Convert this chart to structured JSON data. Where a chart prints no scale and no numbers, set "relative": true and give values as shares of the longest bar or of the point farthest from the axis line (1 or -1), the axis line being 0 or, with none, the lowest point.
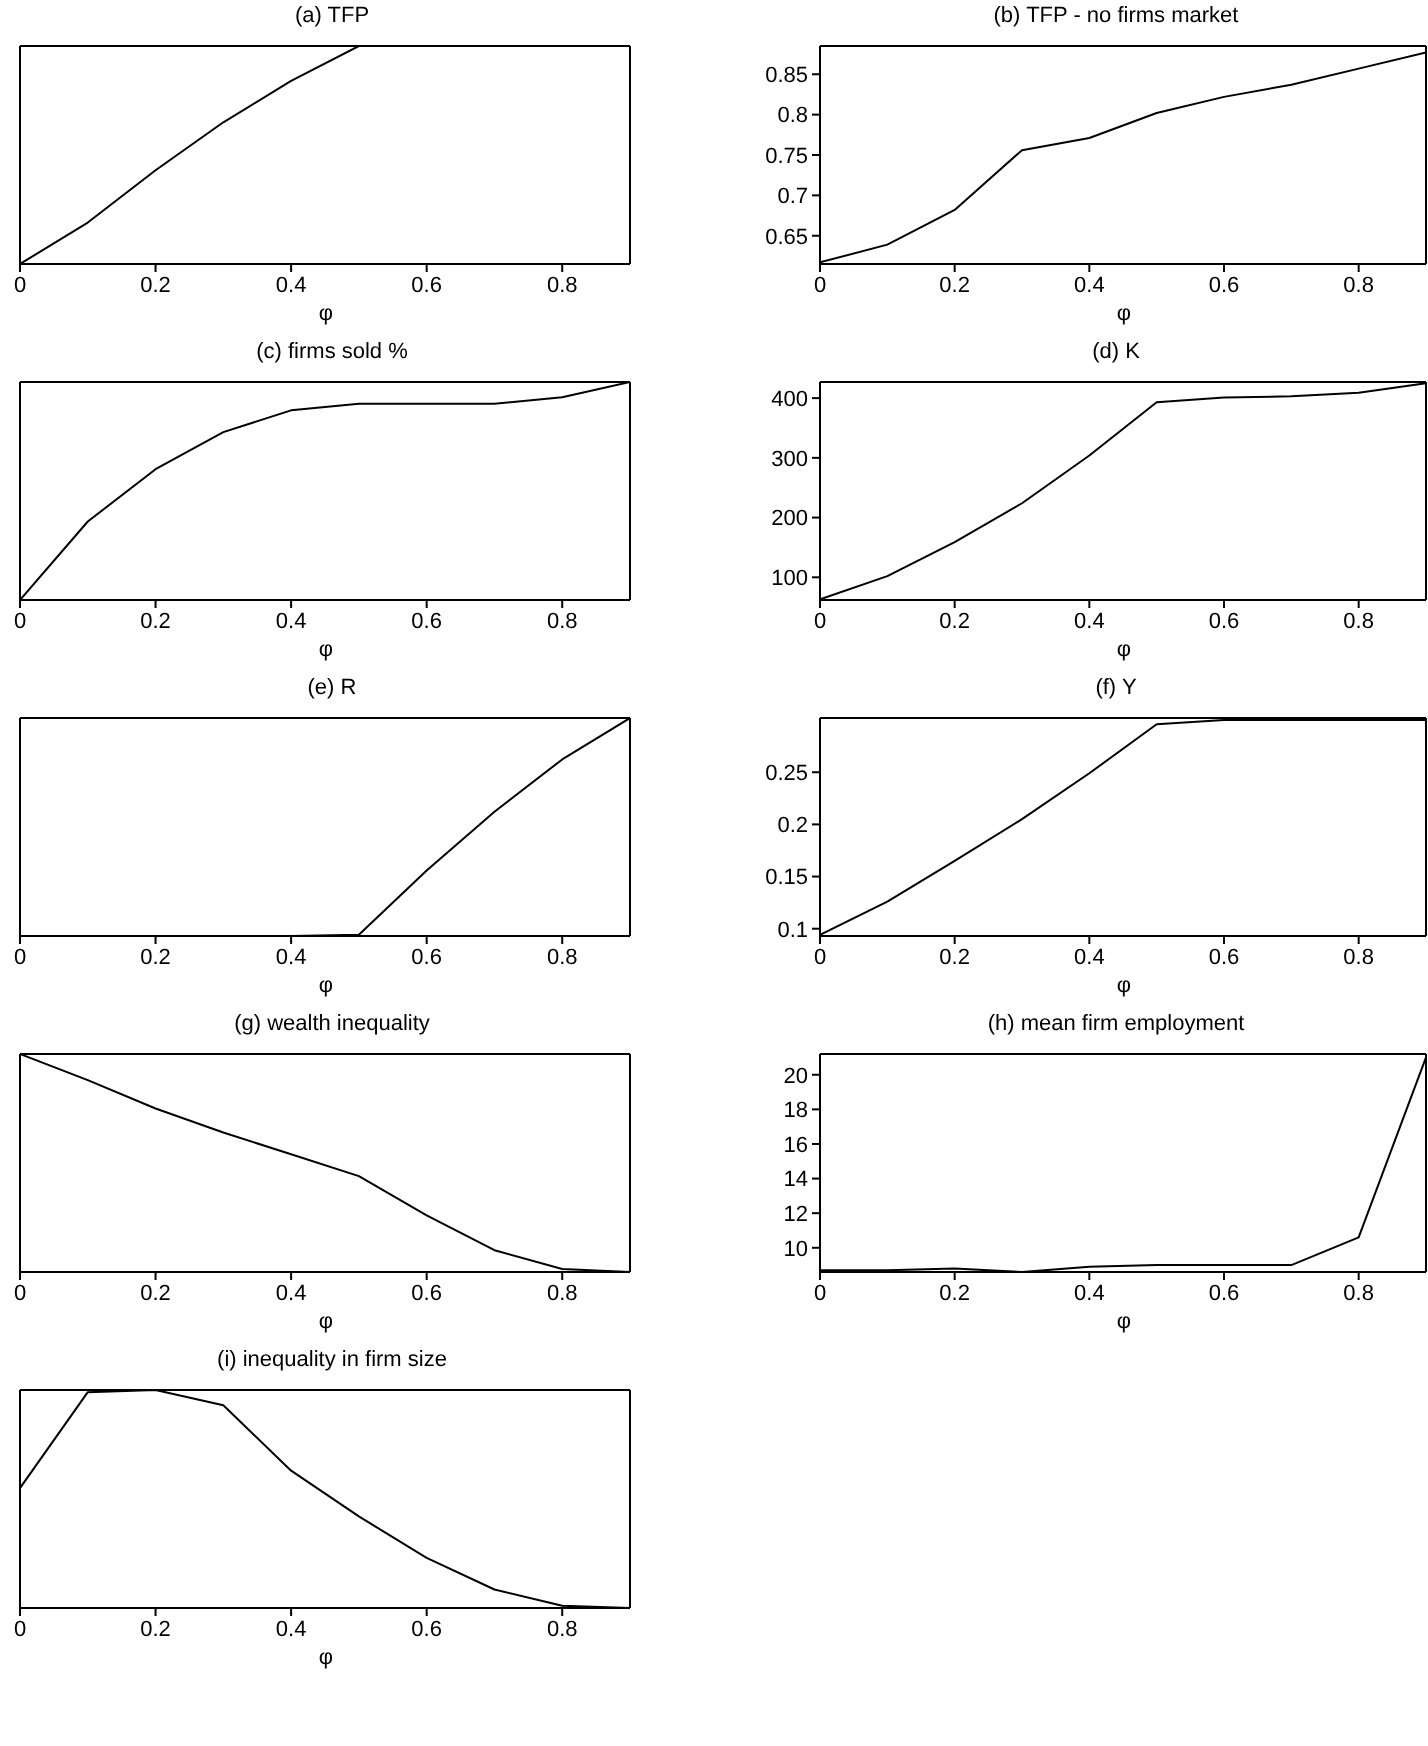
{
  "chart_data": [
    {
      "type": "line",
      "title": "(a) TFP",
      "xlabel": "φ",
      "relative": true,
      "x": [
        0,
        0.1,
        0.2,
        0.3,
        0.4,
        0.5,
        0.6,
        0.7,
        0.8,
        0.9
      ],
      "xlim": [
        0,
        0.9
      ],
      "xticks": [
        0,
        0.2,
        0.4,
        0.6,
        0.8
      ],
      "color": "#000000",
      "values": [
        0,
        0.19,
        0.43,
        0.65,
        0.84,
        1,
        1,
        1,
        1,
        1
      ]
    },
    {
      "type": "line",
      "title": "(b) TFP - no firms market",
      "xlabel": "φ",
      "x": [
        0,
        0.1,
        0.2,
        0.3,
        0.4,
        0.5,
        0.6,
        0.7,
        0.8,
        0.9
      ],
      "xlim": [
        0,
        0.9
      ],
      "xticks": [
        0,
        0.2,
        0.4,
        0.6,
        0.8
      ],
      "ylim": [
        0.615,
        0.885
      ],
      "yticks": [
        0.65,
        0.7,
        0.75,
        0.8,
        0.85
      ],
      "color": "#000000",
      "values": [
        0.617,
        0.639,
        0.682,
        0.756,
        0.771,
        0.802,
        0.822,
        0.837,
        0.857,
        0.877
      ]
    },
    {
      "type": "line",
      "title": "(c) firms sold %",
      "xlabel": "φ",
      "relative": true,
      "x": [
        0,
        0.1,
        0.2,
        0.3,
        0.4,
        0.5,
        0.6,
        0.7,
        0.8,
        0.9
      ],
      "xlim": [
        0,
        0.9
      ],
      "xticks": [
        0,
        0.2,
        0.4,
        0.6,
        0.8
      ],
      "color": "#000000",
      "values": [
        0,
        0.36,
        0.6,
        0.77,
        0.87,
        0.9,
        0.9,
        0.9,
        0.93,
        1
      ]
    },
    {
      "type": "line",
      "title": "(d) K",
      "xlabel": "φ",
      "x": [
        0,
        0.1,
        0.2,
        0.3,
        0.4,
        0.5,
        0.6,
        0.7,
        0.8,
        0.9
      ],
      "xlim": [
        0,
        0.9
      ],
      "xticks": [
        0,
        0.2,
        0.4,
        0.6,
        0.8
      ],
      "ylim": [
        62,
        427
      ],
      "yticks": [
        100,
        200,
        300,
        400
      ],
      "color": "#000000",
      "values": [
        63,
        102,
        159,
        224,
        304,
        393,
        401,
        403,
        409,
        425
      ]
    },
    {
      "type": "line",
      "title": "(e) R",
      "xlabel": "φ",
      "relative": true,
      "x": [
        0,
        0.1,
        0.2,
        0.3,
        0.4,
        0.5,
        0.6,
        0.7,
        0.8,
        0.9
      ],
      "xlim": [
        0,
        0.9
      ],
      "xticks": [
        0,
        0.2,
        0.4,
        0.6,
        0.8
      ],
      "color": "#000000",
      "values": [
        0,
        0,
        0,
        0,
        0,
        0.006,
        0.3,
        0.57,
        0.81,
        1
      ]
    },
    {
      "type": "line",
      "title": "(f) Y",
      "xlabel": "φ",
      "x": [
        0,
        0.1,
        0.2,
        0.3,
        0.4,
        0.5,
        0.6,
        0.7,
        0.8,
        0.9
      ],
      "xlim": [
        0,
        0.9
      ],
      "xticks": [
        0,
        0.2,
        0.4,
        0.6,
        0.8
      ],
      "ylim": [
        0.093,
        0.302
      ],
      "yticks": [
        0.1,
        0.15,
        0.2,
        0.25
      ],
      "color": "#000000",
      "values": [
        0.094,
        0.126,
        0.165,
        0.205,
        0.249,
        0.296,
        0.3,
        0.3,
        0.3,
        0.3
      ]
    },
    {
      "type": "line",
      "title": "(g) wealth inequality",
      "xlabel": "φ",
      "relative": true,
      "x": [
        0,
        0.1,
        0.2,
        0.3,
        0.4,
        0.5,
        0.6,
        0.7,
        0.8,
        0.9
      ],
      "xlim": [
        0,
        0.9
      ],
      "xticks": [
        0,
        0.2,
        0.4,
        0.6,
        0.8
      ],
      "color": "#000000",
      "values": [
        1,
        0.88,
        0.75,
        0.64,
        0.54,
        0.44,
        0.26,
        0.1,
        0.014,
        0
      ]
    },
    {
      "type": "line",
      "title": "(h) mean firm employment",
      "xlabel": "φ",
      "x": [
        0,
        0.1,
        0.2,
        0.3,
        0.4,
        0.5,
        0.6,
        0.7,
        0.8,
        0.9
      ],
      "xlim": [
        0,
        0.9
      ],
      "xticks": [
        0,
        0.2,
        0.4,
        0.6,
        0.8
      ],
      "ylim": [
        8.6,
        21.2
      ],
      "yticks": [
        10,
        12,
        14,
        16,
        18,
        20
      ],
      "color": "#000000",
      "values": [
        8.7,
        8.7,
        8.8,
        8.6,
        8.9,
        9,
        9,
        9,
        10.6,
        21
      ]
    },
    {
      "type": "line",
      "title": "(i) inequality in firm size",
      "xlabel": "φ",
      "relative": true,
      "x": [
        0,
        0.1,
        0.2,
        0.3,
        0.4,
        0.5,
        0.6,
        0.7,
        0.8,
        0.9
      ],
      "xlim": [
        0,
        0.9
      ],
      "xticks": [
        0,
        0.2,
        0.4,
        0.6,
        0.8
      ],
      "color": "#000000",
      "values": [
        0.55,
        0.99,
        1,
        0.93,
        0.63,
        0.42,
        0.23,
        0.085,
        0.01,
        0
      ]
    }
  ]
}
